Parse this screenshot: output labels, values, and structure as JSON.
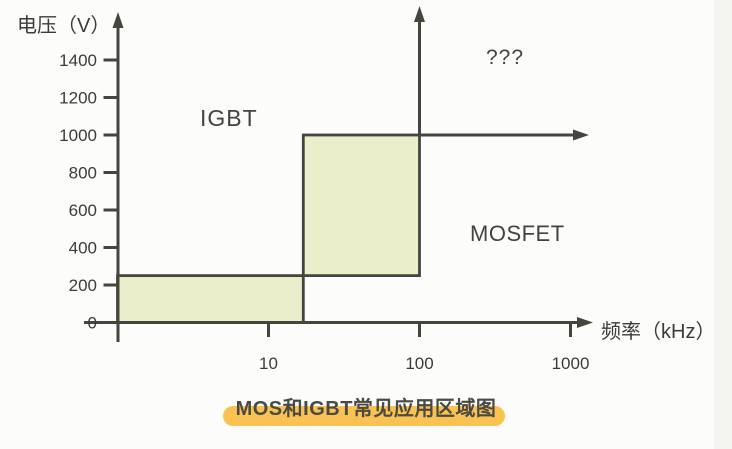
{
  "chart": {
    "y_axis_label": "电压（V）",
    "x_axis_label": "频率（kHz）",
    "region_labels": {
      "igbt": "IGBT",
      "mosfet": "MOSFET",
      "unknown": "???"
    }
  },
  "caption": {
    "text": "MOS和IGBT常见应用区域图"
  },
  "colors": {
    "line": "#45453e",
    "text": "#3c3c37",
    "shade": "#ebeecb",
    "highlight": "#f9c252",
    "background": "#fcfcfb"
  },
  "chart_data": {
    "type": "area",
    "title": "MOS和IGBT常见应用区域图",
    "xlabel": "频率（kHz）",
    "ylabel": "电压（V）",
    "x_scale": "log",
    "x_ticks": [
      10,
      100,
      1000
    ],
    "xlim_kHz": [
      1,
      3000
    ],
    "y_ticks": [
      0,
      200,
      400,
      600,
      800,
      1000,
      1200,
      1400
    ],
    "ylim_V": [
      0,
      1550
    ],
    "grid": false,
    "regions": [
      {
        "label": "IGBT",
        "area": "upper-left of shaded boundary (high voltage, low frequency)"
      },
      {
        "label": "MOSFET",
        "area": "lower-right of shaded boundary (lower voltage, higher frequency)"
      },
      {
        "label": "???",
        "area": "beyond 100 kHz and above 1000 V (marked by extension arrows)"
      }
    ],
    "shaded_steps": [
      {
        "x_kHz": [
          1,
          17
        ],
        "y_V": [
          0,
          250
        ]
      },
      {
        "x_kHz": [
          17,
          100
        ],
        "y_V": [
          250,
          1000
        ]
      }
    ],
    "corner_arrows_from": {
      "x_kHz": 100,
      "y_V": 1000
    }
  }
}
